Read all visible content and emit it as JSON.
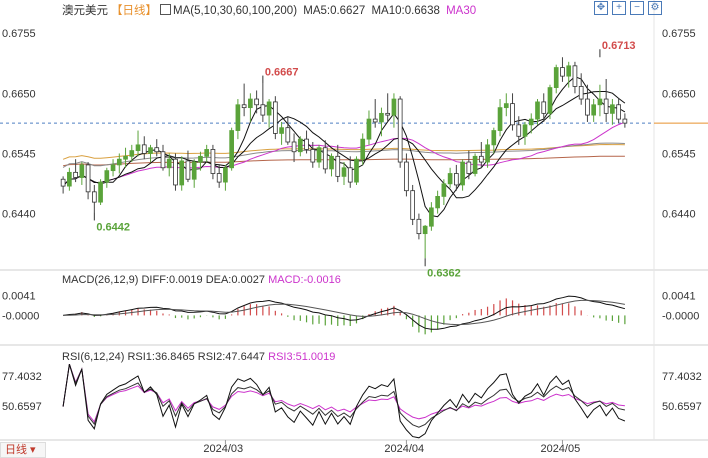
{
  "header": {
    "symbol": "澳元美元",
    "period": "【日线】",
    "ma_label": "MA(5,10,30,60,100,200)",
    "ma5": "MA5:0.6627",
    "ma10": "MA10:0.6638",
    "ma30": "MA30",
    "icon_names": [
      "crosshair-icon",
      "zoom-in-icon",
      "zoom-out-icon",
      "settings-icon"
    ]
  },
  "macd_header": {
    "label": "MACD(26,12,9)",
    "diff": "DIFF:0.0019",
    "dea": "DEA:0.0027",
    "macd": "MACD:-0.0016"
  },
  "rsi_header": {
    "label": "RSI(6,12,24)",
    "rsi1": "RSI1:36.8465",
    "rsi2": "RSI2:47.6447",
    "rsi3": "RSI3:51.0019"
  },
  "bottom_tab": "日线",
  "colors": {
    "up": "#5aa33a",
    "down": "#d24b4b",
    "ma5": "#111111",
    "ma10": "#111111",
    "ma30": "#cc33cc",
    "ma60": "#8a8a8a",
    "ma100": "#d9a040",
    "ma200": "#b5654a",
    "rsi3": "#cc33cc",
    "axis_text": "#333333",
    "ref_line": "#4d7fc2",
    "annot_high": "#d24b4b",
    "annot_low": "#5aa33a"
  },
  "chart_data": {
    "type": "candlestick",
    "price_ticks": [
      "0.6755",
      "0.6650",
      "0.6545",
      "0.6440"
    ],
    "price_tick_values": [
      0.6755,
      0.665,
      0.6545,
      0.644
    ],
    "ylim": [
      0.6345,
      0.6785
    ],
    "current_price": 0.6598,
    "x_labels": [
      "2024/03",
      "2024/04",
      "2024/05"
    ],
    "x_label_index": [
      26,
      55,
      80
    ],
    "annotations": [
      {
        "text": "0.6667",
        "value": 0.6667,
        "index": 32,
        "kind": "high"
      },
      {
        "text": "0.6442",
        "value": 0.6442,
        "index": 5,
        "kind": "low"
      },
      {
        "text": "0.6362",
        "value": 0.6362,
        "index": 58,
        "kind": "low"
      },
      {
        "text": "0.6713",
        "value": 0.6713,
        "index": 86,
        "kind": "high"
      }
    ],
    "candles": [
      [
        0.65,
        0.6505,
        0.6475,
        0.6488
      ],
      [
        0.6488,
        0.652,
        0.648,
        0.6512
      ],
      [
        0.6512,
        0.6535,
        0.6495,
        0.6503
      ],
      [
        0.6503,
        0.653,
        0.649,
        0.6525
      ],
      [
        0.6525,
        0.653,
        0.6465,
        0.6478
      ],
      [
        0.6478,
        0.649,
        0.6442,
        0.646
      ],
      [
        0.646,
        0.65,
        0.6455,
        0.6495
      ],
      [
        0.6495,
        0.652,
        0.6485,
        0.6515
      ],
      [
        0.6515,
        0.6535,
        0.6505,
        0.6525
      ],
      [
        0.6525,
        0.6545,
        0.651,
        0.6535
      ],
      [
        0.6535,
        0.6555,
        0.652,
        0.654
      ],
      [
        0.654,
        0.656,
        0.653,
        0.655
      ],
      [
        0.655,
        0.6585,
        0.654,
        0.656
      ],
      [
        0.656,
        0.6575,
        0.6535,
        0.6545
      ],
      [
        0.6545,
        0.656,
        0.653,
        0.6555
      ],
      [
        0.6555,
        0.657,
        0.654,
        0.6548
      ],
      [
        0.6548,
        0.656,
        0.6515,
        0.652
      ],
      [
        0.652,
        0.6545,
        0.6505,
        0.6535
      ],
      [
        0.6535,
        0.6545,
        0.648,
        0.649
      ],
      [
        0.649,
        0.654,
        0.648,
        0.6532
      ],
      [
        0.6532,
        0.655,
        0.6495,
        0.65
      ],
      [
        0.65,
        0.6535,
        0.6485,
        0.653
      ],
      [
        0.653,
        0.6548,
        0.6515,
        0.654
      ],
      [
        0.654,
        0.656,
        0.653,
        0.6552
      ],
      [
        0.6552,
        0.656,
        0.65,
        0.651
      ],
      [
        0.651,
        0.6525,
        0.6485,
        0.6495
      ],
      [
        0.6495,
        0.6525,
        0.648,
        0.652
      ],
      [
        0.652,
        0.659,
        0.6515,
        0.6585
      ],
      [
        0.6585,
        0.664,
        0.657,
        0.663
      ],
      [
        0.663,
        0.6667,
        0.661,
        0.6625
      ],
      [
        0.6625,
        0.665,
        0.66,
        0.664
      ],
      [
        0.664,
        0.6655,
        0.6615,
        0.663
      ],
      [
        0.663,
        0.6667,
        0.66,
        0.6612
      ],
      [
        0.6612,
        0.664,
        0.659,
        0.6635
      ],
      [
        0.6635,
        0.6645,
        0.657,
        0.658
      ],
      [
        0.658,
        0.66,
        0.656,
        0.659
      ],
      [
        0.659,
        0.661,
        0.656,
        0.6565
      ],
      [
        0.6565,
        0.658,
        0.653,
        0.6548
      ],
      [
        0.6548,
        0.6575,
        0.654,
        0.657
      ],
      [
        0.657,
        0.6585,
        0.6545,
        0.6552
      ],
      [
        0.6552,
        0.6565,
        0.652,
        0.653
      ],
      [
        0.653,
        0.656,
        0.652,
        0.6555
      ],
      [
        0.6555,
        0.6568,
        0.651,
        0.6518
      ],
      [
        0.6518,
        0.6545,
        0.6505,
        0.654
      ],
      [
        0.654,
        0.656,
        0.6495,
        0.6505
      ],
      [
        0.6505,
        0.653,
        0.649,
        0.652
      ],
      [
        0.652,
        0.654,
        0.6485,
        0.6495
      ],
      [
        0.6495,
        0.654,
        0.649,
        0.6535
      ],
      [
        0.6535,
        0.658,
        0.6525,
        0.657
      ],
      [
        0.657,
        0.662,
        0.656,
        0.6605
      ],
      [
        0.6605,
        0.664,
        0.659,
        0.66
      ],
      [
        0.66,
        0.6625,
        0.6575,
        0.6615
      ],
      [
        0.6615,
        0.665,
        0.66,
        0.6612
      ],
      [
        0.6612,
        0.665,
        0.659,
        0.664
      ],
      [
        0.664,
        0.6645,
        0.652,
        0.653
      ],
      [
        0.653,
        0.6545,
        0.647,
        0.648
      ],
      [
        0.648,
        0.649,
        0.642,
        0.643
      ],
      [
        0.643,
        0.644,
        0.6395,
        0.6405
      ],
      [
        0.6405,
        0.642,
        0.6362,
        0.6418
      ],
      [
        0.6418,
        0.646,
        0.641,
        0.645
      ],
      [
        0.645,
        0.648,
        0.644,
        0.647
      ],
      [
        0.647,
        0.65,
        0.6455,
        0.6492
      ],
      [
        0.6492,
        0.652,
        0.6485,
        0.651
      ],
      [
        0.651,
        0.6525,
        0.648,
        0.649
      ],
      [
        0.649,
        0.6535,
        0.648,
        0.653
      ],
      [
        0.653,
        0.655,
        0.65,
        0.651
      ],
      [
        0.651,
        0.6545,
        0.6505,
        0.654
      ],
      [
        0.654,
        0.6565,
        0.652,
        0.653
      ],
      [
        0.653,
        0.657,
        0.652,
        0.656
      ],
      [
        0.656,
        0.659,
        0.6545,
        0.6585
      ],
      [
        0.6585,
        0.664,
        0.6575,
        0.6625
      ],
      [
        0.6625,
        0.665,
        0.661,
        0.6632
      ],
      [
        0.6632,
        0.665,
        0.6585,
        0.6595
      ],
      [
        0.6595,
        0.661,
        0.656,
        0.6575
      ],
      [
        0.6575,
        0.66,
        0.656,
        0.6595
      ],
      [
        0.6595,
        0.6615,
        0.658,
        0.6605
      ],
      [
        0.6605,
        0.664,
        0.6595,
        0.6635
      ],
      [
        0.6635,
        0.665,
        0.66,
        0.6615
      ],
      [
        0.6615,
        0.6665,
        0.6605,
        0.666
      ],
      [
        0.666,
        0.67,
        0.665,
        0.6695
      ],
      [
        0.6695,
        0.6713,
        0.667,
        0.668
      ],
      [
        0.668,
        0.6705,
        0.666,
        0.6698
      ],
      [
        0.6698,
        0.6705,
        0.665,
        0.6662
      ],
      [
        0.6662,
        0.6685,
        0.663,
        0.664
      ],
      [
        0.664,
        0.6665,
        0.66,
        0.6612
      ],
      [
        0.6612,
        0.664,
        0.66,
        0.663
      ],
      [
        0.663,
        0.6665,
        0.661,
        0.664
      ],
      [
        0.664,
        0.6675,
        0.66,
        0.6615
      ],
      [
        0.6615,
        0.664,
        0.6595,
        0.663
      ],
      [
        0.663,
        0.664,
        0.6598,
        0.6605
      ],
      [
        0.6605,
        0.6615,
        0.659,
        0.6598
      ]
    ],
    "macd": {
      "yticks": [
        "0.0041",
        "-0.0000"
      ],
      "ytick_values": [
        0.0041,
        0.0
      ],
      "ylim": [
        -0.0042,
        0.006
      ]
    },
    "rsi": {
      "yticks": [
        "77.4032",
        "50.6597"
      ],
      "ytick_values": [
        77.4032,
        50.6597
      ],
      "ylim": [
        20,
        90
      ]
    }
  }
}
